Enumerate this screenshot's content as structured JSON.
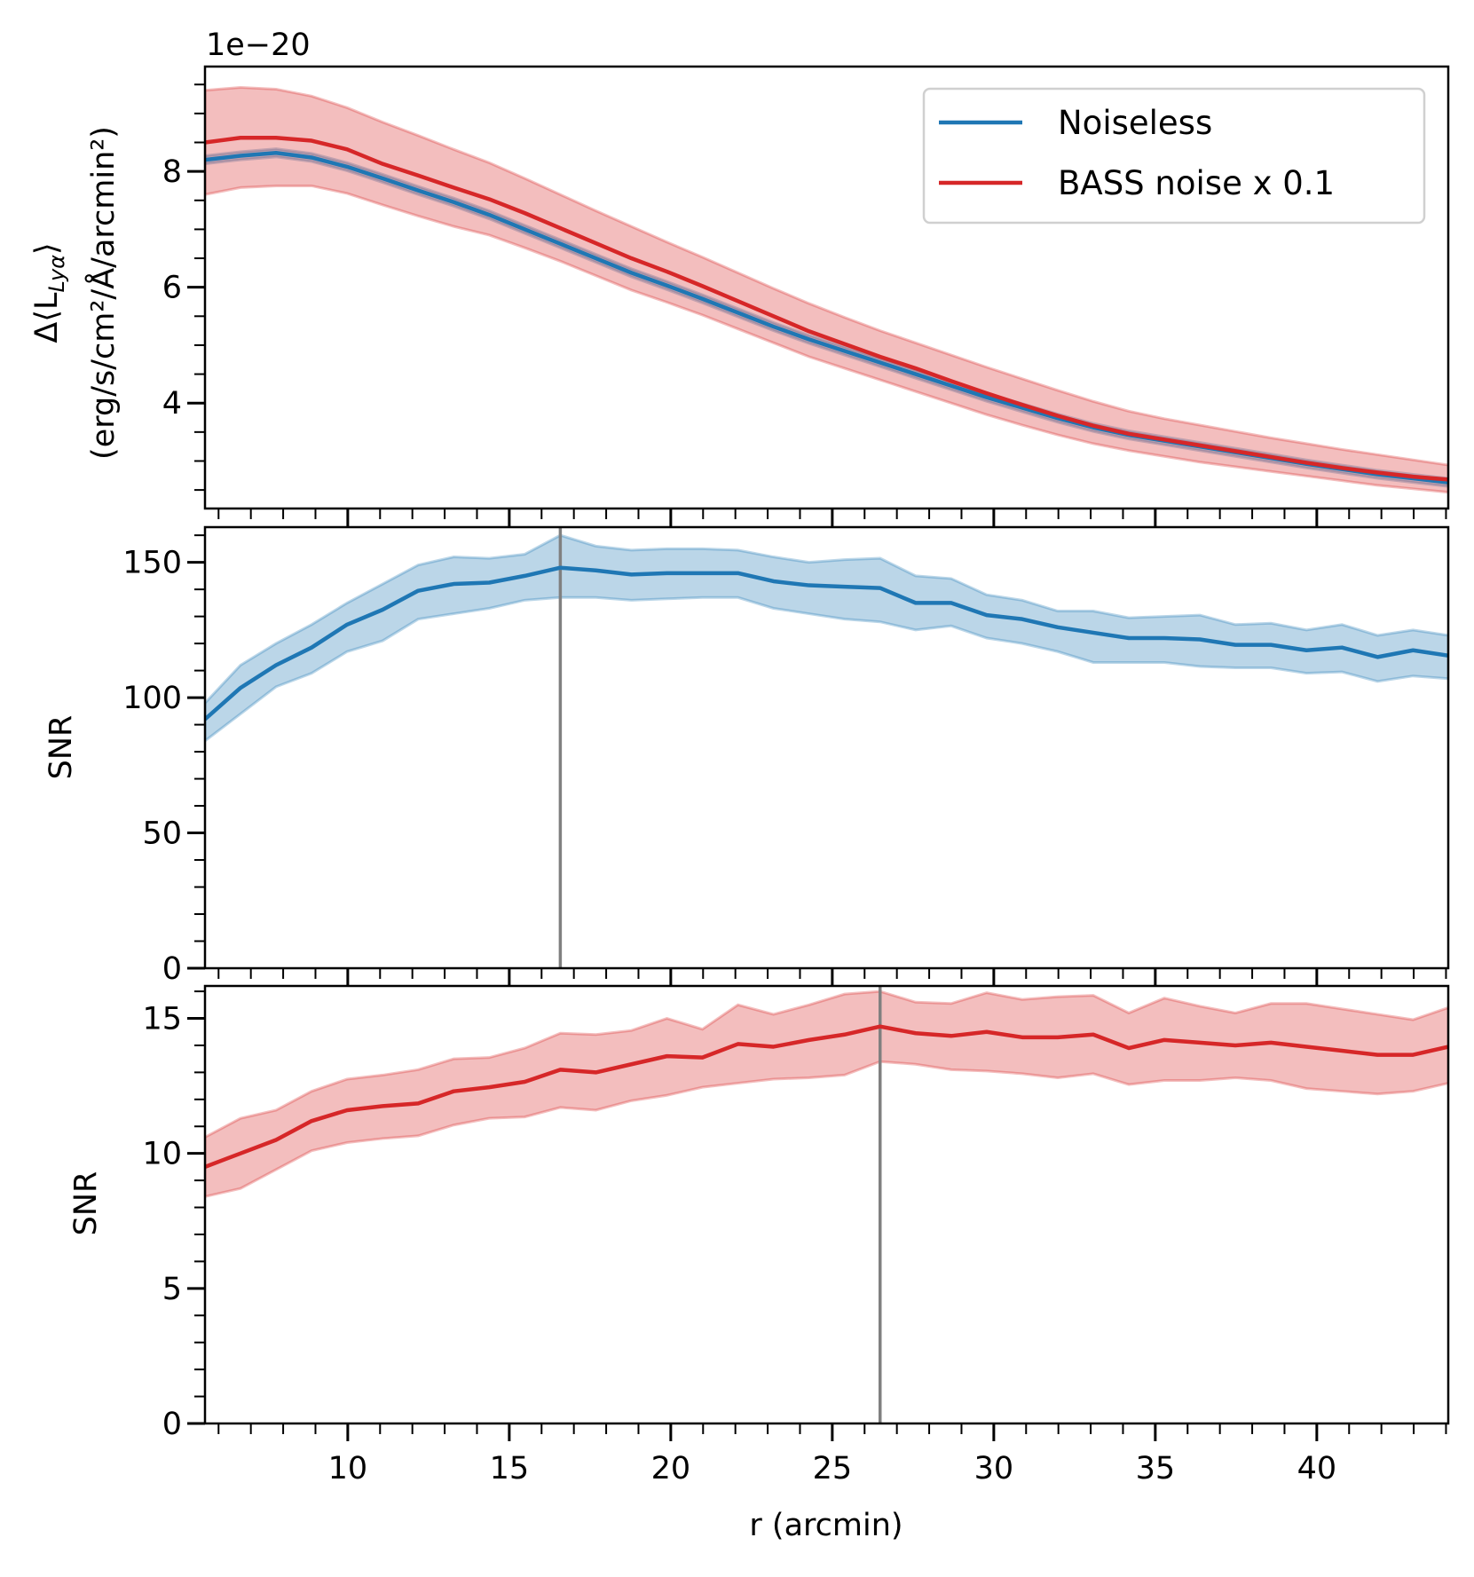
{
  "chart_data": [
    {
      "type": "line",
      "panel": "top",
      "offset_text": "1e−20",
      "ylabel_main": "Δ⟨L",
      "ylabel_sub": "Lyα",
      "ylabel_close": "⟩",
      "ylabel_units": "(erg/s/cm²/Å/arcmin²)",
      "xlim": [
        5.58,
        44.07
      ],
      "ylim": [
        2.18,
        9.81
      ],
      "yticks": [
        4,
        6,
        8
      ],
      "yminor_step": 0.5,
      "x": [
        5.58,
        6.68,
        7.78,
        8.88,
        9.98,
        11.08,
        12.18,
        13.28,
        14.38,
        15.48,
        16.58,
        17.68,
        18.78,
        19.88,
        20.98,
        22.08,
        23.18,
        24.28,
        25.38,
        26.48,
        27.58,
        28.68,
        29.78,
        30.88,
        31.98,
        33.08,
        34.18,
        35.28,
        36.38,
        37.48,
        38.58,
        39.68,
        40.78,
        41.88,
        42.98,
        44.08
      ],
      "series": [
        {
          "name": "Noiseless",
          "color": "#1f77b4",
          "values": [
            8.2,
            8.27,
            8.32,
            8.24,
            8.08,
            7.88,
            7.67,
            7.47,
            7.25,
            7.0,
            6.75,
            6.5,
            6.25,
            6.03,
            5.8,
            5.56,
            5.32,
            5.1,
            4.9,
            4.7,
            4.5,
            4.3,
            4.1,
            3.92,
            3.74,
            3.58,
            3.45,
            3.35,
            3.25,
            3.15,
            3.05,
            2.95,
            2.86,
            2.77,
            2.7,
            2.63
          ],
          "upper": [
            8.27,
            8.34,
            8.39,
            8.31,
            8.15,
            7.95,
            7.74,
            7.54,
            7.32,
            7.07,
            6.82,
            6.57,
            6.32,
            6.1,
            5.87,
            5.63,
            5.39,
            5.17,
            4.97,
            4.77,
            4.57,
            4.37,
            4.17,
            3.99,
            3.81,
            3.65,
            3.52,
            3.42,
            3.32,
            3.22,
            3.12,
            3.02,
            2.93,
            2.84,
            2.77,
            2.7
          ],
          "lower": [
            8.13,
            8.2,
            8.25,
            8.17,
            8.01,
            7.81,
            7.6,
            7.4,
            7.18,
            6.93,
            6.68,
            6.43,
            6.18,
            5.96,
            5.73,
            5.49,
            5.25,
            5.03,
            4.83,
            4.63,
            4.43,
            4.23,
            4.03,
            3.85,
            3.67,
            3.51,
            3.38,
            3.28,
            3.18,
            3.08,
            2.98,
            2.88,
            2.79,
            2.7,
            2.63,
            2.56
          ]
        },
        {
          "name": "BASS noise x 0.1",
          "color": "#d62728",
          "values": [
            8.5,
            8.58,
            8.58,
            8.53,
            8.38,
            8.13,
            7.93,
            7.72,
            7.52,
            7.28,
            7.02,
            6.76,
            6.5,
            6.27,
            6.02,
            5.76,
            5.5,
            5.24,
            5.02,
            4.8,
            4.6,
            4.38,
            4.17,
            3.97,
            3.78,
            3.61,
            3.47,
            3.37,
            3.27,
            3.17,
            3.07,
            2.97,
            2.88,
            2.8,
            2.73,
            2.68
          ],
          "upper": [
            9.4,
            9.45,
            9.42,
            9.3,
            9.1,
            8.85,
            8.62,
            8.38,
            8.15,
            7.88,
            7.6,
            7.32,
            7.05,
            6.78,
            6.52,
            6.25,
            5.98,
            5.72,
            5.48,
            5.25,
            5.04,
            4.83,
            4.62,
            4.42,
            4.22,
            4.03,
            3.86,
            3.73,
            3.62,
            3.51,
            3.4,
            3.3,
            3.2,
            3.11,
            3.02,
            2.93
          ],
          "lower": [
            7.6,
            7.72,
            7.75,
            7.75,
            7.62,
            7.42,
            7.23,
            7.05,
            6.9,
            6.68,
            6.45,
            6.2,
            5.95,
            5.74,
            5.52,
            5.28,
            5.04,
            4.8,
            4.6,
            4.4,
            4.2,
            4.0,
            3.8,
            3.62,
            3.45,
            3.3,
            3.18,
            3.08,
            2.98,
            2.9,
            2.82,
            2.74,
            2.66,
            2.58,
            2.52,
            2.46
          ]
        }
      ],
      "legend": {
        "position": "top-right",
        "entries": [
          "Noiseless",
          "BASS noise x 0.1"
        ]
      }
    },
    {
      "type": "line",
      "panel": "middle",
      "ylabel": "SNR",
      "xlim": [
        5.58,
        44.07
      ],
      "ylim": [
        0,
        163
      ],
      "yticks": [
        0,
        50,
        100,
        150
      ],
      "yminor_step": 10,
      "vline_x": 16.58,
      "vline_color": "#808080",
      "series": [
        {
          "color": "#1f77b4",
          "values": [
            92,
            103.6,
            112,
            118.5,
            127,
            132.5,
            139.5,
            142,
            142.5,
            145,
            148,
            147,
            145.5,
            146,
            146,
            146,
            143,
            141.5,
            141,
            140.5,
            135,
            135,
            130.5,
            129,
            126,
            124,
            122,
            122,
            121.5,
            119.5,
            119.5,
            117.5,
            118.5,
            115,
            117.5,
            115.5
          ],
          "upper": [
            98,
            112,
            120,
            127,
            135,
            142,
            149,
            152,
            151.5,
            153,
            160,
            156,
            154.5,
            155,
            155,
            154.5,
            152,
            150,
            151,
            151.5,
            145,
            144,
            138,
            136,
            132,
            132,
            129.5,
            130,
            130.5,
            127,
            127.5,
            125,
            127,
            123,
            125,
            123
          ],
          "lower": [
            84,
            94,
            104,
            109,
            117,
            121,
            129,
            131,
            133,
            136,
            137,
            137,
            136,
            136.5,
            137,
            137,
            133,
            131,
            129,
            128,
            125,
            126.5,
            122,
            120,
            117,
            113,
            113,
            113,
            111.5,
            111,
            111,
            109,
            109.5,
            106,
            108,
            107
          ]
        }
      ]
    },
    {
      "type": "line",
      "panel": "bottom",
      "ylabel": "SNR",
      "xlabel": "r (arcmin)",
      "xlim": [
        5.58,
        44.07
      ],
      "ylim": [
        0,
        16.2
      ],
      "xticks": [
        10,
        15,
        20,
        25,
        30,
        35,
        40
      ],
      "yticks": [
        0,
        5,
        10,
        15
      ],
      "yminor_step": 1,
      "vline_x": 26.48,
      "vline_color": "#808080",
      "series": [
        {
          "color": "#d62728",
          "values": [
            9.5,
            10.0,
            10.5,
            11.2,
            11.6,
            11.75,
            11.85,
            12.3,
            12.45,
            12.65,
            13.1,
            13.0,
            13.3,
            13.6,
            13.55,
            14.05,
            13.95,
            14.2,
            14.4,
            14.7,
            14.45,
            14.35,
            14.5,
            14.3,
            14.3,
            14.4,
            13.9,
            14.2,
            14.1,
            14.0,
            14.1,
            13.95,
            13.8,
            13.65,
            13.65,
            13.95
          ],
          "upper": [
            10.6,
            11.3,
            11.6,
            12.3,
            12.75,
            12.9,
            13.1,
            13.5,
            13.55,
            13.9,
            14.45,
            14.4,
            14.55,
            15.0,
            14.6,
            15.5,
            15.15,
            15.5,
            15.9,
            16.0,
            15.6,
            15.55,
            15.95,
            15.7,
            15.8,
            15.85,
            15.2,
            15.75,
            15.45,
            15.2,
            15.55,
            15.55,
            15.35,
            15.15,
            14.95,
            15.4
          ],
          "lower": [
            8.4,
            8.7,
            9.4,
            10.1,
            10.4,
            10.55,
            10.65,
            11.05,
            11.3,
            11.35,
            11.7,
            11.6,
            11.95,
            12.15,
            12.45,
            12.6,
            12.75,
            12.8,
            12.9,
            13.4,
            13.3,
            13.1,
            13.05,
            12.95,
            12.8,
            12.95,
            12.55,
            12.7,
            12.7,
            12.8,
            12.7,
            12.4,
            12.3,
            12.2,
            12.3,
            12.6
          ]
        }
      ]
    }
  ]
}
